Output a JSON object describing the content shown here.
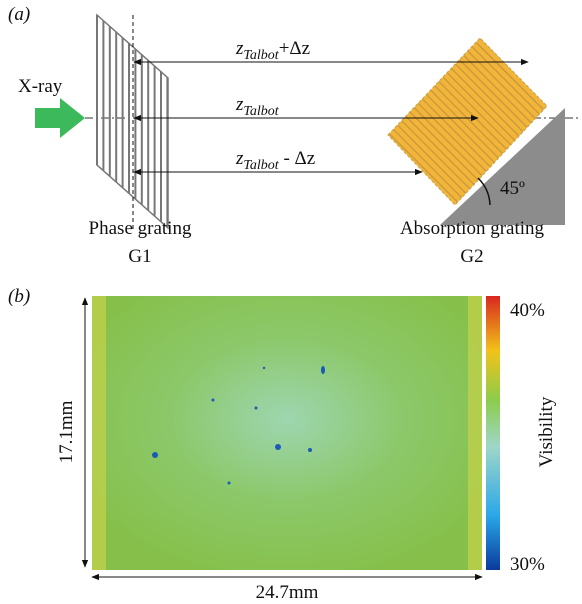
{
  "panel_a": {
    "label": "(a)",
    "source": "X-ray",
    "distances": [
      {
        "symbol": "z",
        "subscript": "Talbot",
        "suffix": "+Δz"
      },
      {
        "symbol": "z",
        "subscript": "Talbot",
        "suffix": ""
      },
      {
        "symbol": "z",
        "subscript": "Talbot",
        "suffix": " - Δz"
      }
    ],
    "angle": "45º",
    "g1": {
      "name": "Phase grating",
      "id": "G1"
    },
    "g2": {
      "name": "Absorption grating",
      "id": "G2"
    }
  },
  "panel_b": {
    "label": "(b)",
    "height_label": "17.1mm",
    "width_label": "24.7mm",
    "colorbar": {
      "title": "Visibility",
      "max_label": "40%",
      "min_label": "30%"
    }
  }
}
